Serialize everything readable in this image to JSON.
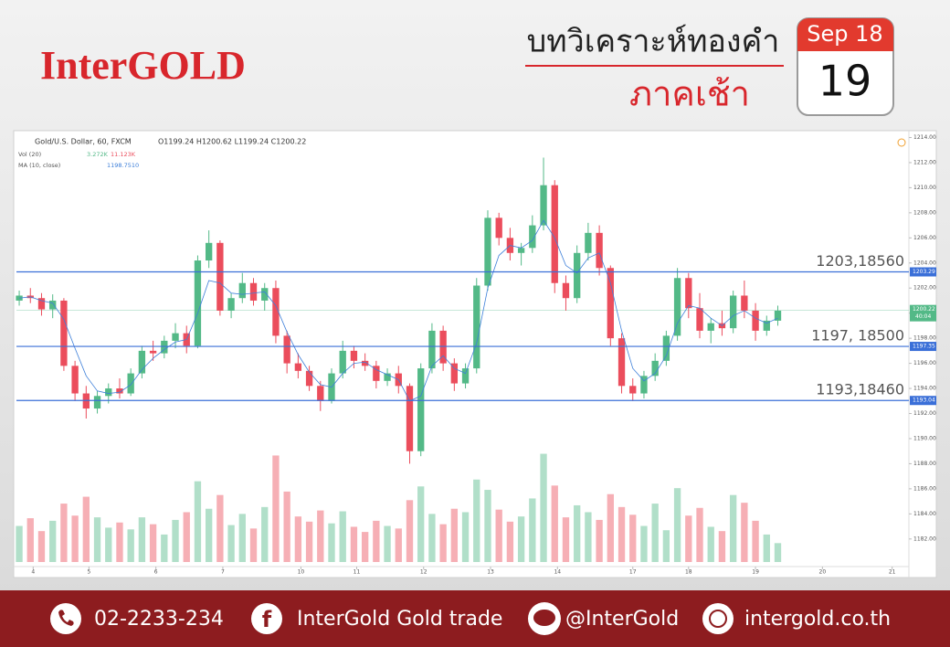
{
  "header": {
    "brand": "InterGOLD",
    "title": "บทวิเคราะห์ทองคำ",
    "subtitle": "ภาคเช้า",
    "calendar": {
      "month": "Sep 18",
      "day": "19"
    }
  },
  "chart_data": {
    "type": "candlestick",
    "legend": {
      "symbol": "Gold/U.S. Dollar, 60, FXCM",
      "ohlc": "O1199.24 H1200.62 L1199.24 C1200.22",
      "volume": "Vol (20)",
      "volume_values": [
        "3.272K",
        "11.123K"
      ],
      "ma": "MA (10, close)",
      "ma_value": "1198.7510"
    },
    "x": [
      1,
      5,
      9,
      13,
      17,
      21,
      25,
      29,
      33,
      37,
      41,
      45,
      49,
      53,
      57,
      61,
      65,
      69,
      73,
      77,
      81,
      85,
      89,
      93,
      97,
      101,
      105,
      109,
      113,
      117,
      121,
      125,
      129,
      133,
      137,
      141,
      145,
      149,
      153,
      157,
      161,
      165,
      169,
      173,
      177,
      181,
      185,
      189,
      193,
      197,
      201,
      205,
      209,
      213,
      217,
      221,
      225,
      229,
      233,
      237,
      241,
      245,
      249,
      253,
      257,
      261,
      265,
      269,
      273
    ],
    "open": [
      1201.0,
      1201.4,
      1201.2,
      1200.3,
      1201.0,
      1195.8,
      1193.6,
      1192.4,
      1193.4,
      1194.0,
      1193.6,
      1195.2,
      1197.0,
      1196.8,
      1197.8,
      1198.4,
      1197.4,
      1204.2,
      1205.6,
      1200.2,
      1201.2,
      1202.4,
      1201.0,
      1202.0,
      1198.2,
      1196.0,
      1195.4,
      1194.2,
      1193.0,
      1195.2,
      1197.0,
      1196.2,
      1195.8,
      1194.6,
      1195.2,
      1194.2,
      1189.0,
      1195.6,
      1198.6,
      1196.0,
      1194.4,
      1195.6,
      1202.2,
      1207.6,
      1206.0,
      1204.8,
      1205.2,
      1207.0,
      1210.2,
      1202.4,
      1201.2,
      1204.8,
      1206.4,
      1203.6,
      1198.0,
      1194.2,
      1193.6,
      1195.0,
      1196.2,
      1198.2,
      1202.8,
      1200.4,
      1198.6,
      1199.2,
      1198.8,
      1201.4,
      1200.2,
      1198.6,
      1199.4
    ],
    "high": [
      1201.8,
      1202.0,
      1201.6,
      1201.5,
      1201.2,
      1196.2,
      1194.2,
      1193.8,
      1194.4,
      1194.8,
      1195.6,
      1197.4,
      1197.8,
      1198.2,
      1199.2,
      1199.0,
      1204.6,
      1206.6,
      1205.8,
      1201.6,
      1203.2,
      1202.8,
      1202.4,
      1202.6,
      1198.6,
      1196.8,
      1195.8,
      1194.6,
      1195.6,
      1197.8,
      1197.4,
      1196.8,
      1196.2,
      1195.6,
      1195.8,
      1194.4,
      1196.0,
      1199.2,
      1199.0,
      1196.4,
      1196.0,
      1202.8,
      1208.2,
      1208.0,
      1206.8,
      1205.6,
      1207.8,
      1212.4,
      1210.6,
      1203.0,
      1205.4,
      1207.2,
      1207.0,
      1203.8,
      1198.4,
      1194.8,
      1195.4,
      1196.8,
      1198.6,
      1203.6,
      1203.2,
      1201.6,
      1199.6,
      1200.2,
      1201.8,
      1202.6,
      1200.8,
      1199.8,
      1200.6
    ],
    "low": [
      1200.6,
      1200.8,
      1199.8,
      1199.6,
      1195.4,
      1193.0,
      1191.6,
      1192.0,
      1192.8,
      1193.2,
      1193.4,
      1194.8,
      1196.2,
      1196.4,
      1197.2,
      1196.8,
      1197.2,
      1203.6,
      1199.8,
      1199.6,
      1200.8,
      1200.6,
      1200.2,
      1197.6,
      1195.2,
      1194.8,
      1193.8,
      1192.2,
      1192.8,
      1194.8,
      1195.6,
      1195.4,
      1194.0,
      1194.2,
      1193.6,
      1188.0,
      1188.6,
      1195.2,
      1195.4,
      1193.8,
      1194.0,
      1195.2,
      1201.8,
      1205.4,
      1204.2,
      1203.8,
      1204.8,
      1206.6,
      1201.6,
      1200.2,
      1200.8,
      1204.2,
      1203.0,
      1197.4,
      1193.6,
      1193.0,
      1193.2,
      1194.6,
      1195.8,
      1197.8,
      1199.6,
      1198.0,
      1197.6,
      1198.2,
      1198.4,
      1199.6,
      1197.8,
      1198.2,
      1199.0
    ],
    "close": [
      1201.4,
      1201.2,
      1200.3,
      1201.0,
      1195.8,
      1193.6,
      1192.4,
      1193.4,
      1194.0,
      1193.6,
      1195.2,
      1197.0,
      1196.8,
      1197.8,
      1198.4,
      1197.4,
      1204.2,
      1205.6,
      1200.2,
      1201.2,
      1202.4,
      1201.0,
      1202.0,
      1198.2,
      1196.0,
      1195.4,
      1194.2,
      1193.0,
      1195.2,
      1197.0,
      1196.2,
      1195.8,
      1194.6,
      1195.2,
      1194.2,
      1189.0,
      1195.6,
      1198.6,
      1196.0,
      1194.4,
      1195.6,
      1202.2,
      1207.6,
      1206.0,
      1204.8,
      1205.2,
      1207.0,
      1210.2,
      1202.4,
      1201.2,
      1204.8,
      1206.4,
      1203.6,
      1198.0,
      1194.2,
      1193.6,
      1195.0,
      1196.2,
      1198.2,
      1202.8,
      1200.4,
      1198.6,
      1199.2,
      1198.8,
      1201.4,
      1200.2,
      1198.6,
      1199.4,
      1200.2
    ],
    "volume": [
      4200,
      5100,
      3600,
      4800,
      6800,
      5400,
      7600,
      5200,
      4000,
      4600,
      3800,
      5200,
      4400,
      3200,
      4900,
      5800,
      9400,
      6200,
      7800,
      4300,
      5600,
      3900,
      6400,
      12400,
      8200,
      5300,
      4700,
      6000,
      4500,
      5900,
      4100,
      3500,
      4800,
      4200,
      3900,
      7200,
      8800,
      5600,
      4400,
      6200,
      5800,
      9600,
      8400,
      6100,
      4700,
      5300,
      7400,
      12600,
      8900,
      5200,
      6600,
      5800,
      4900,
      7900,
      6400,
      5500,
      4200,
      6800,
      3700,
      8600,
      5400,
      6300,
      4100,
      3600,
      7800,
      6900,
      4800,
      3200,
      2200
    ],
    "ma": [
      1201.2,
      1201.3,
      1201.0,
      1200.8,
      1199.5,
      1197.2,
      1195.0,
      1193.8,
      1193.6,
      1193.7,
      1194.3,
      1195.5,
      1196.4,
      1197.1,
      1197.7,
      1197.9,
      1200.0,
      1202.6,
      1202.4,
      1201.6,
      1201.5,
      1201.6,
      1201.7,
      1200.6,
      1198.5,
      1196.7,
      1195.3,
      1194.3,
      1194.1,
      1195.2,
      1196.0,
      1196.1,
      1195.5,
      1195.1,
      1194.7,
      1193.0,
      1193.4,
      1195.8,
      1196.6,
      1195.6,
      1195.2,
      1197.6,
      1202.0,
      1204.6,
      1205.4,
      1205.2,
      1205.8,
      1207.4,
      1206.0,
      1203.8,
      1203.2,
      1204.4,
      1204.8,
      1202.4,
      1198.6,
      1195.6,
      1194.6,
      1195.2,
      1196.6,
      1199.2,
      1200.6,
      1200.4,
      1199.6,
      1199.0,
      1199.8,
      1200.2,
      1199.6,
      1199.2,
      1199.6
    ],
    "up_color": "#53b987",
    "down_color": "#eb4d5c",
    "ma_color": "#3d7fd9",
    "level_color": "#3a6fd8",
    "last_color": "#53b987",
    "xlim": [
      0,
      320
    ],
    "xticks": [
      {
        "value": 6,
        "label": "4"
      },
      {
        "value": 26,
        "label": "5"
      },
      {
        "value": 50,
        "label": "6"
      },
      {
        "value": 74,
        "label": "7"
      },
      {
        "value": 102,
        "label": "10"
      },
      {
        "value": 122,
        "label": "11"
      },
      {
        "value": 146,
        "label": "12"
      },
      {
        "value": 170,
        "label": "13"
      },
      {
        "value": 194,
        "label": "14"
      },
      {
        "value": 221,
        "label": "17"
      },
      {
        "value": 241,
        "label": "18"
      },
      {
        "value": 265,
        "label": "19"
      },
      {
        "value": 289,
        "label": "20"
      },
      {
        "value": 314,
        "label": "21"
      }
    ],
    "ylim": [
      1179.8,
      1214.4
    ],
    "yticks": [
      {
        "value": 1182,
        "label": "1182.00"
      },
      {
        "value": 1184,
        "label": "1184.00"
      },
      {
        "value": 1186,
        "label": "1186.00"
      },
      {
        "value": 1188,
        "label": "1188.00"
      },
      {
        "value": 1190,
        "label": "1190.00"
      },
      {
        "value": 1192,
        "label": "1192.00"
      },
      {
        "value": 1194,
        "label": "1194.00"
      },
      {
        "value": 1196,
        "label": "1196.00"
      },
      {
        "value": 1198,
        "label": "1198.00"
      },
      {
        "value": 1200,
        "label": "1200.00"
      },
      {
        "value": 1202,
        "label": "1202.00"
      },
      {
        "value": 1204,
        "label": "1204.00"
      },
      {
        "value": 1206,
        "label": "1206.00"
      },
      {
        "value": 1208,
        "label": "1208.00"
      },
      {
        "value": 1210,
        "label": "1210.00"
      },
      {
        "value": 1212,
        "label": "1212.00"
      },
      {
        "value": 1214,
        "label": "1214.00"
      }
    ],
    "y2lim": [
      0,
      50000
    ],
    "levels": [
      {
        "value": 1203.29,
        "label": "1203.29",
        "note": "1203,18560"
      },
      {
        "value": 1197.35,
        "label": "1197.35",
        "note": "1197, 18500"
      },
      {
        "value": 1193.04,
        "label": "1193.04",
        "note": "1193,18460"
      }
    ],
    "last": {
      "value": 1200.22,
      "label": "1200.22",
      "timer": "40:04"
    }
  },
  "footer": {
    "phone": "02-2233-234",
    "facebook": "InterGold Gold trade",
    "line": "@InterGold",
    "web": "intergold.co.th"
  }
}
